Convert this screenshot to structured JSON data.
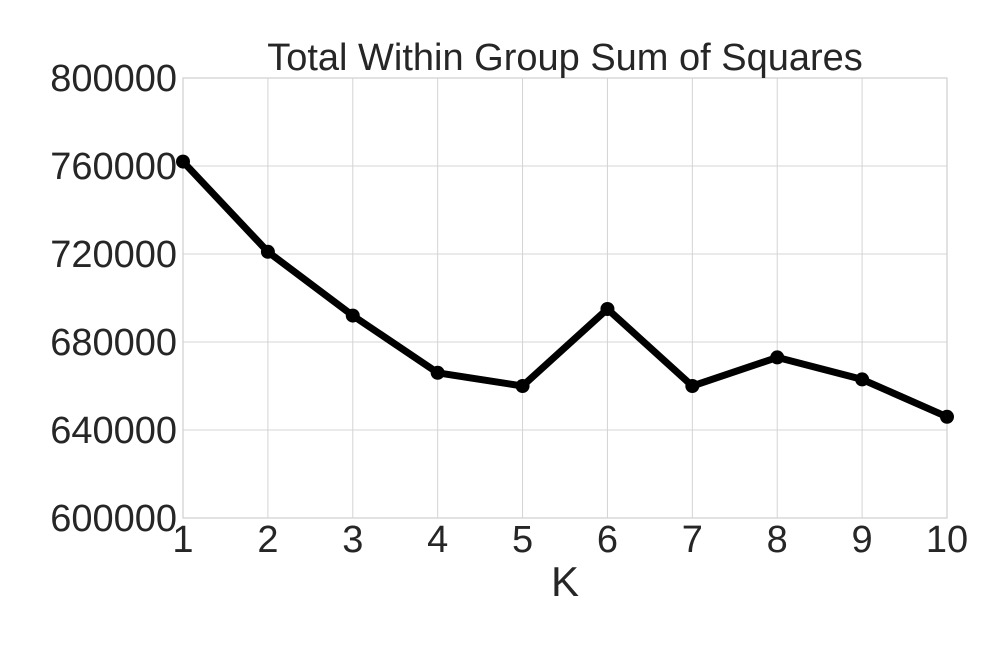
{
  "chart_data": {
    "type": "line",
    "title": "Total Within Group Sum of Squares",
    "xlabel": "K",
    "ylabel": "",
    "x": [
      1,
      2,
      3,
      4,
      5,
      6,
      7,
      8,
      9,
      10
    ],
    "series": [
      {
        "values": [
          762000,
          721000,
          692000,
          666000,
          660000,
          695000,
          660000,
          673000,
          663000,
          646000
        ],
        "color": "#000000"
      }
    ],
    "xlim": [
      1,
      10
    ],
    "ylim": [
      600000,
      800000
    ],
    "xticks": [
      "1",
      "2",
      "3",
      "4",
      "5",
      "6",
      "7",
      "8",
      "9",
      "10"
    ],
    "yticks": [
      {
        "value": 600000,
        "label": "600000"
      },
      {
        "value": 640000,
        "label": "640000"
      },
      {
        "value": 680000,
        "label": "680000"
      },
      {
        "value": 720000,
        "label": "720000"
      },
      {
        "value": 760000,
        "label": "760000"
      },
      {
        "value": 800000,
        "label": "800000"
      }
    ],
    "grid": true,
    "background": "#ffffff",
    "gridColor": "#d4d4d4"
  }
}
